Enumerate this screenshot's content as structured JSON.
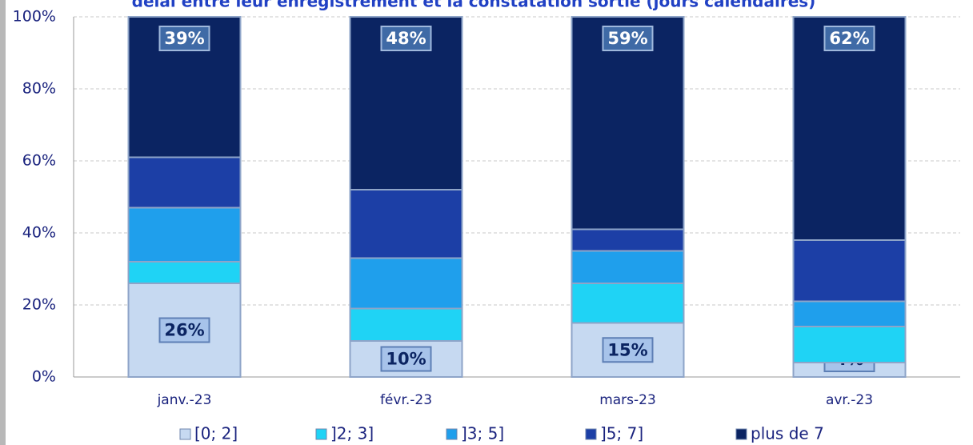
{
  "chart_data": {
    "type": "bar",
    "stacked": true,
    "title": "délai entre leur enregistrement et la constatation sortie (jours calendaires)",
    "categories": [
      "janv.-23",
      "févr.-23",
      "mars-23",
      "avr.-23"
    ],
    "series": [
      {
        "name": "[0; 2]",
        "color": "#c6d9f1",
        "values": [
          26,
          10,
          15,
          4
        ],
        "value_labels": [
          "26%",
          "10%",
          "15%",
          "4%"
        ]
      },
      {
        "name": "]2; 3]",
        "color": "#1fd3f5",
        "values": [
          6,
          9,
          11,
          10
        ]
      },
      {
        "name": "]3; 5]",
        "color": "#1f9fec",
        "values": [
          15,
          14,
          9,
          7
        ]
      },
      {
        "name": "]5; 7]",
        "color": "#1c3fa6",
        "values": [
          14,
          19,
          6,
          17
        ]
      },
      {
        "name": "plus de 7",
        "color": "#0b2462",
        "values": [
          39,
          48,
          59,
          62
        ],
        "value_labels": [
          "39%",
          "48%",
          "59%",
          "62%"
        ]
      }
    ],
    "ylim": [
      0,
      100
    ],
    "yticks": [
      {
        "value": 0,
        "label": "0%"
      },
      {
        "value": 20,
        "label": "20%"
      },
      {
        "value": 40,
        "label": "40%"
      },
      {
        "value": 60,
        "label": "60%"
      },
      {
        "value": 80,
        "label": "80%"
      },
      {
        "value": 100,
        "label": "100%"
      }
    ],
    "grid": true
  }
}
